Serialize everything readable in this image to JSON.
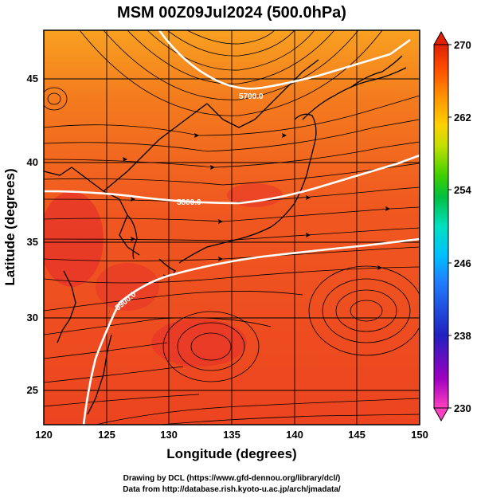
{
  "title": "MSM 00Z09Jul2024 (500.0hPa)",
  "x_axis_label": "Longitude (degrees)",
  "y_axis_label": "Latitude  (degrees)",
  "credits": [
    "Drawing by DCL (https://www.gfd-dennou.org/library/dcl/)",
    "Data from http://database.rish.kyoto-u.ac.jp/arch/jmadata/"
  ],
  "chart_data": {
    "type": "heatmap",
    "x_ticks": [
      "120",
      "125",
      "130",
      "135",
      "140",
      "145",
      "150"
    ],
    "y_ticks": [
      "45",
      "40",
      "35",
      "30",
      "25"
    ],
    "xlim": [
      120,
      150
    ],
    "ylim": [
      22.5,
      47.5
    ],
    "grid": true,
    "colorbar": {
      "range": [
        230,
        270
      ],
      "ticks": [
        "270",
        "262",
        "254",
        "246",
        "238",
        "230"
      ],
      "colors": [
        "#ff40c0",
        "#a000c0",
        "#2020c0",
        "#2080ff",
        "#00c0ff",
        "#00e0c0",
        "#00c040",
        "#40d000",
        "#c0e000",
        "#ffd000",
        "#ff9000",
        "#ff5000",
        "#e02000"
      ]
    },
    "contours": [
      {
        "label": "5700.0",
        "level": 5700
      },
      {
        "label": "5800.0",
        "level": 5800
      },
      {
        "label": "5900.0",
        "level": 5900
      }
    ]
  },
  "colors": {
    "field_warm": "#f05a1e",
    "field_hot": "#e83c28",
    "field_cool": "#f8a01e",
    "contour": "#ffffff",
    "streamline": "#000000"
  }
}
